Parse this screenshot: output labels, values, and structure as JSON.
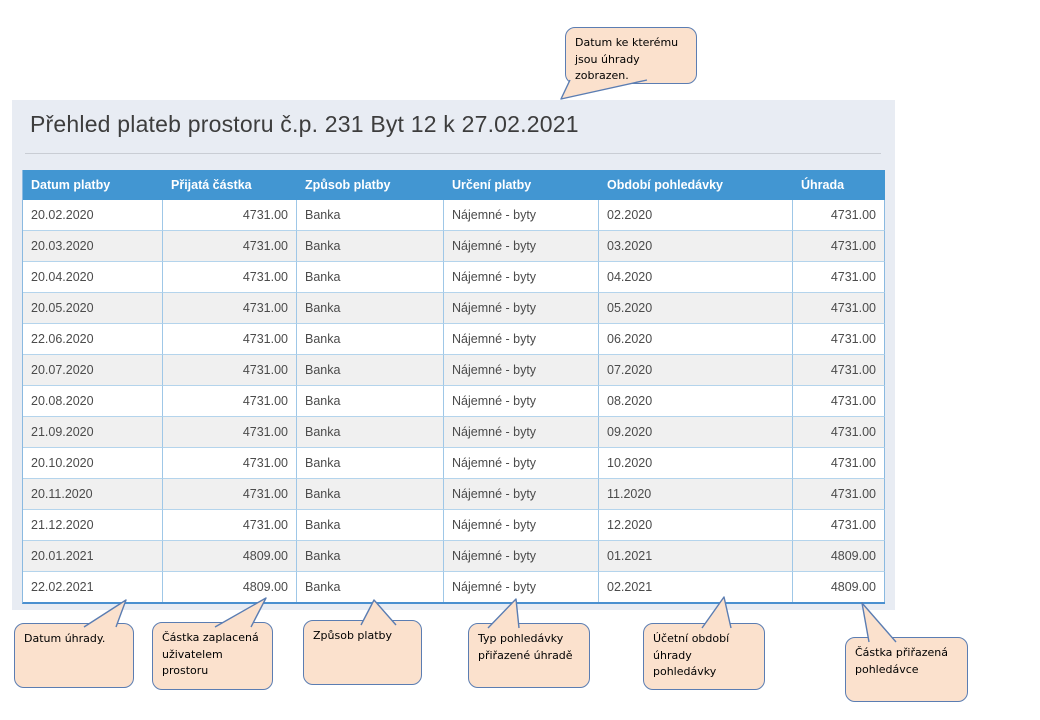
{
  "panel": {
    "title": "Přehled plateb prostoru č.p. 231 Byt 12 k 27.02.2021"
  },
  "table": {
    "columns": [
      "Datum platby",
      "Přijatá částka",
      "Způsob platby",
      "Určení platby",
      "Období pohledávky",
      "Úhrada"
    ],
    "rows": [
      [
        "20.02.2020",
        "4731.00",
        "Banka",
        "Nájemné - byty",
        "02.2020",
        "4731.00"
      ],
      [
        "20.03.2020",
        "4731.00",
        "Banka",
        "Nájemné - byty",
        "03.2020",
        "4731.00"
      ],
      [
        "20.04.2020",
        "4731.00",
        "Banka",
        "Nájemné - byty",
        "04.2020",
        "4731.00"
      ],
      [
        "20.05.2020",
        "4731.00",
        "Banka",
        "Nájemné - byty",
        "05.2020",
        "4731.00"
      ],
      [
        "22.06.2020",
        "4731.00",
        "Banka",
        "Nájemné - byty",
        "06.2020",
        "4731.00"
      ],
      [
        "20.07.2020",
        "4731.00",
        "Banka",
        "Nájemné - byty",
        "07.2020",
        "4731.00"
      ],
      [
        "20.08.2020",
        "4731.00",
        "Banka",
        "Nájemné - byty",
        "08.2020",
        "4731.00"
      ],
      [
        "21.09.2020",
        "4731.00",
        "Banka",
        "Nájemné - byty",
        "09.2020",
        "4731.00"
      ],
      [
        "20.10.2020",
        "4731.00",
        "Banka",
        "Nájemné - byty",
        "10.2020",
        "4731.00"
      ],
      [
        "20.11.2020",
        "4731.00",
        "Banka",
        "Nájemné - byty",
        "11.2020",
        "4731.00"
      ],
      [
        "21.12.2020",
        "4731.00",
        "Banka",
        "Nájemné - byty",
        "12.2020",
        "4731.00"
      ],
      [
        "20.01.2021",
        "4809.00",
        "Banka",
        "Nájemné - byty",
        "01.2021",
        "4809.00"
      ],
      [
        "22.02.2021",
        "4809.00",
        "Banka",
        "Nájemné - byty",
        "02.2021",
        "4809.00"
      ]
    ]
  },
  "callouts": {
    "top": "Datum ke kterému jsou úhrady zobrazen.",
    "datum_uhrady": "Datum úhrady.",
    "castka_zaplacena": "Částka zaplacená uživatelem prostoru",
    "zpusob_platby": "Způsob platby",
    "typ_pohledavky": "Typ pohledávky přiřazené úhradě",
    "ucetni_obdobi": "Účetní období úhrady pohledávky",
    "castka_prirazena": "Částka přiřazená pohledávce"
  },
  "colors": {
    "header_bg": "#4296d2",
    "panel_bg": "#e8ecf3",
    "callout_bg": "#fbe1cd",
    "callout_border": "#5b7db2"
  }
}
